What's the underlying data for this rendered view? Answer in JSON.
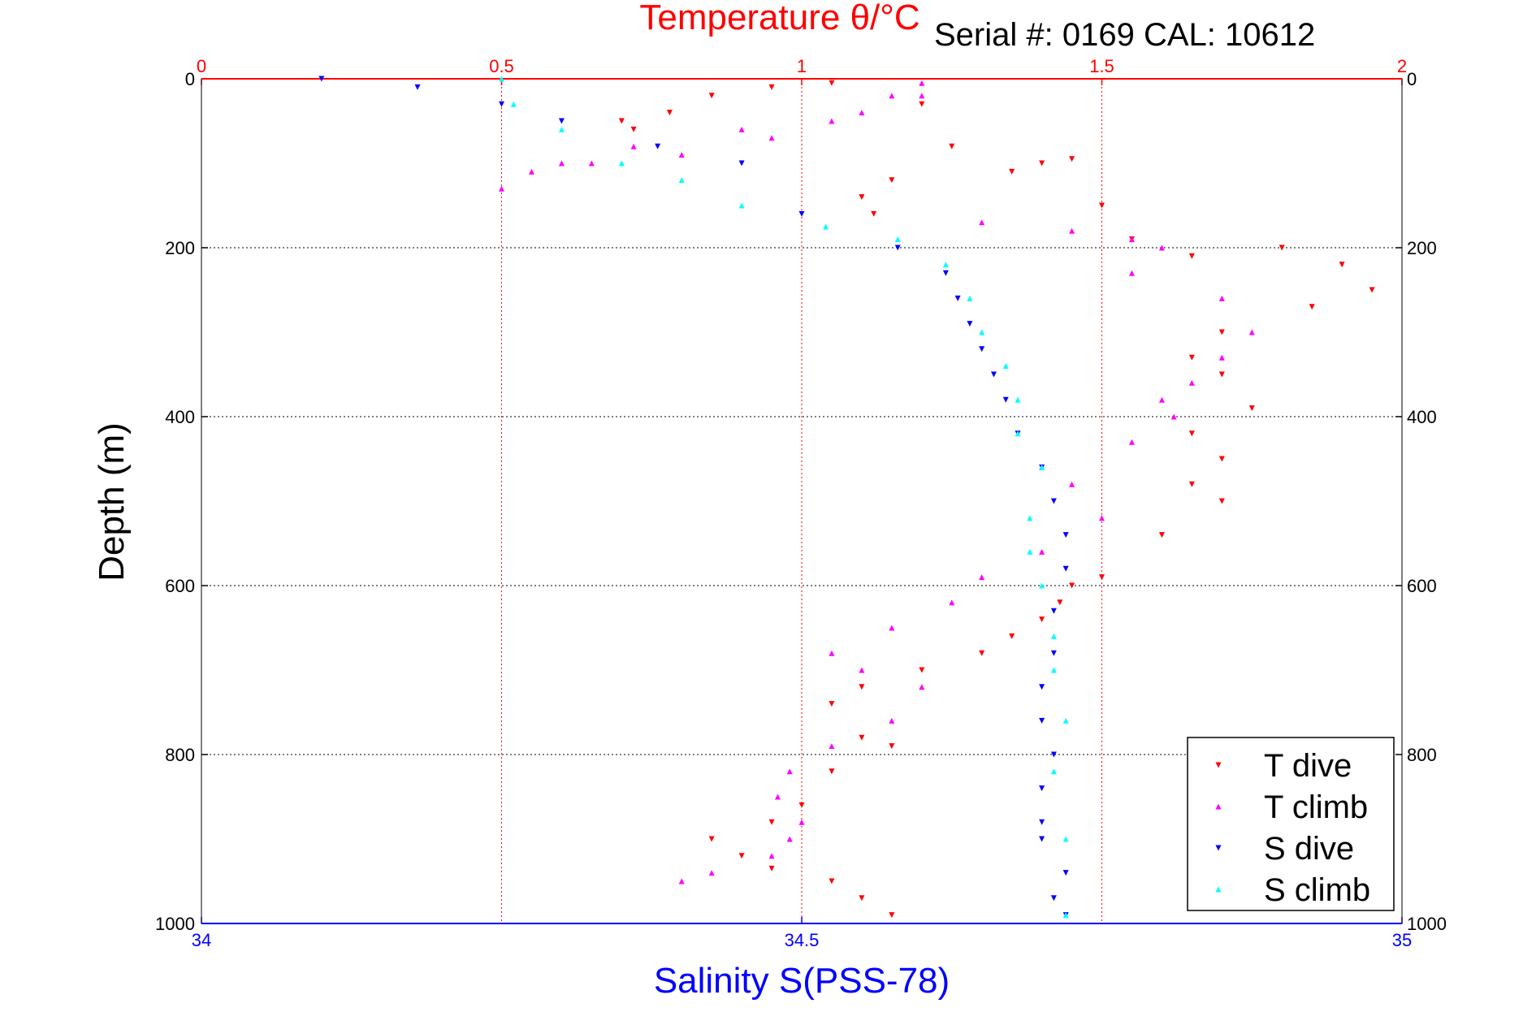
{
  "colors": {
    "t_dive": "#ff0000",
    "t_climb": "#ff00ff",
    "s_dive": "#0000ff",
    "s_climb": "#00ffff",
    "grid_t": "#ff0000",
    "grid_d": "#000000"
  },
  "chart_data": {
    "type": "scatter",
    "title": "Temperature θ/°C",
    "subtitle": "Serial #: 0169 CAL: 10612",
    "xlabel": "Salinity S(PSS-78)",
    "ylabel": "Depth (m)",
    "x_top_axis": {
      "label": "Temperature θ/°C",
      "range": [
        0,
        2
      ],
      "ticks": [
        "0",
        "0.5",
        "1",
        "1.5",
        "2"
      ]
    },
    "x_bottom_axis": {
      "label": "Salinity S(PSS-78)",
      "range": [
        34,
        35
      ],
      "ticks": [
        "34",
        "34.5",
        "35"
      ]
    },
    "y_axis": {
      "label": "Depth (m)",
      "range": [
        0,
        1000
      ],
      "reversed": true,
      "ticks": [
        "0",
        "200",
        "400",
        "600",
        "800",
        "1000"
      ]
    },
    "grid": true,
    "legend_position": "bottom-right",
    "series": [
      {
        "name": "T dive",
        "axis": "temperature",
        "marker": "triangle-down",
        "x": [
          0.7,
          0.72,
          0.78,
          0.85,
          0.95,
          1.05,
          1.2,
          1.25,
          1.15,
          1.1,
          1.12,
          1.35,
          1.4,
          1.45,
          1.5,
          1.55,
          1.65,
          1.8,
          1.9,
          1.95,
          1.85,
          1.7,
          1.65,
          1.7,
          1.75,
          1.65,
          1.7,
          1.65,
          1.7,
          1.6,
          1.5,
          1.45,
          1.43,
          1.4,
          1.35,
          1.3,
          1.2,
          1.1,
          1.05,
          1.1,
          1.15,
          1.05,
          1.0,
          0.95,
          0.85,
          0.9,
          0.95,
          1.05,
          1.1,
          1.15
        ],
        "y": [
          50,
          60,
          40,
          20,
          10,
          5,
          30,
          80,
          120,
          140,
          160,
          110,
          100,
          95,
          150,
          190,
          210,
          200,
          220,
          250,
          270,
          300,
          330,
          350,
          390,
          420,
          450,
          480,
          500,
          540,
          590,
          600,
          620,
          640,
          660,
          680,
          700,
          720,
          740,
          780,
          790,
          820,
          860,
          880,
          900,
          920,
          935,
          950,
          970,
          990
        ]
      },
      {
        "name": "T climb",
        "axis": "temperature",
        "marker": "triangle-up",
        "x": [
          1.2,
          1.15,
          1.05,
          0.95,
          0.8,
          0.65,
          0.55,
          0.5,
          0.6,
          0.72,
          0.9,
          1.1,
          1.2,
          1.3,
          1.45,
          1.55,
          1.6,
          1.55,
          1.7,
          1.75,
          1.7,
          1.65,
          1.6,
          1.62,
          1.55,
          1.4,
          1.45,
          1.5,
          1.4,
          1.3,
          1.25,
          1.15,
          1.05,
          1.1,
          1.2,
          1.15,
          1.05,
          0.98,
          0.96,
          1.0,
          0.98,
          0.95,
          0.85,
          0.8
        ],
        "y": [
          5,
          20,
          50,
          70,
          90,
          100,
          110,
          130,
          100,
          80,
          60,
          40,
          20,
          170,
          180,
          190,
          200,
          230,
          260,
          300,
          330,
          360,
          380,
          400,
          430,
          460,
          480,
          520,
          560,
          590,
          620,
          650,
          680,
          700,
          720,
          760,
          790,
          820,
          850,
          880,
          900,
          920,
          940,
          950
        ]
      },
      {
        "name": "S dive",
        "axis": "salinity",
        "marker": "triangle-down",
        "x": [
          34.1,
          34.18,
          34.25,
          34.3,
          34.38,
          34.45,
          34.5,
          34.58,
          34.62,
          34.63,
          34.64,
          34.65,
          34.66,
          34.67,
          34.68,
          34.7,
          34.71,
          34.72,
          34.72,
          34.71,
          34.71,
          34.7,
          34.7,
          34.71,
          34.7,
          34.7,
          34.7,
          34.72,
          34.71,
          34.72
        ],
        "y": [
          0,
          10,
          30,
          50,
          80,
          100,
          160,
          200,
          230,
          260,
          290,
          320,
          350,
          380,
          420,
          460,
          500,
          540,
          580,
          630,
          680,
          720,
          760,
          800,
          840,
          880,
          900,
          940,
          970,
          990
        ]
      },
      {
        "name": "S climb",
        "axis": "salinity",
        "marker": "triangle-up",
        "x": [
          34.25,
          34.26,
          34.3,
          34.35,
          34.4,
          34.45,
          34.52,
          34.58,
          34.62,
          34.64,
          34.65,
          34.67,
          34.68,
          34.68,
          34.7,
          34.69,
          34.69,
          34.7,
          34.71,
          34.71,
          34.72,
          34.71,
          34.72,
          34.72
        ],
        "y": [
          0,
          30,
          60,
          100,
          120,
          150,
          175,
          190,
          220,
          260,
          300,
          340,
          380,
          420,
          460,
          520,
          560,
          600,
          660,
          700,
          760,
          820,
          900,
          990
        ]
      }
    ]
  },
  "legend": {
    "items": [
      {
        "label": "T dive",
        "color_key": "t_dive"
      },
      {
        "label": "T climb",
        "color_key": "t_climb"
      },
      {
        "label": "S dive",
        "color_key": "s_dive"
      },
      {
        "label": "S climb",
        "color_key": "s_climb"
      }
    ]
  }
}
